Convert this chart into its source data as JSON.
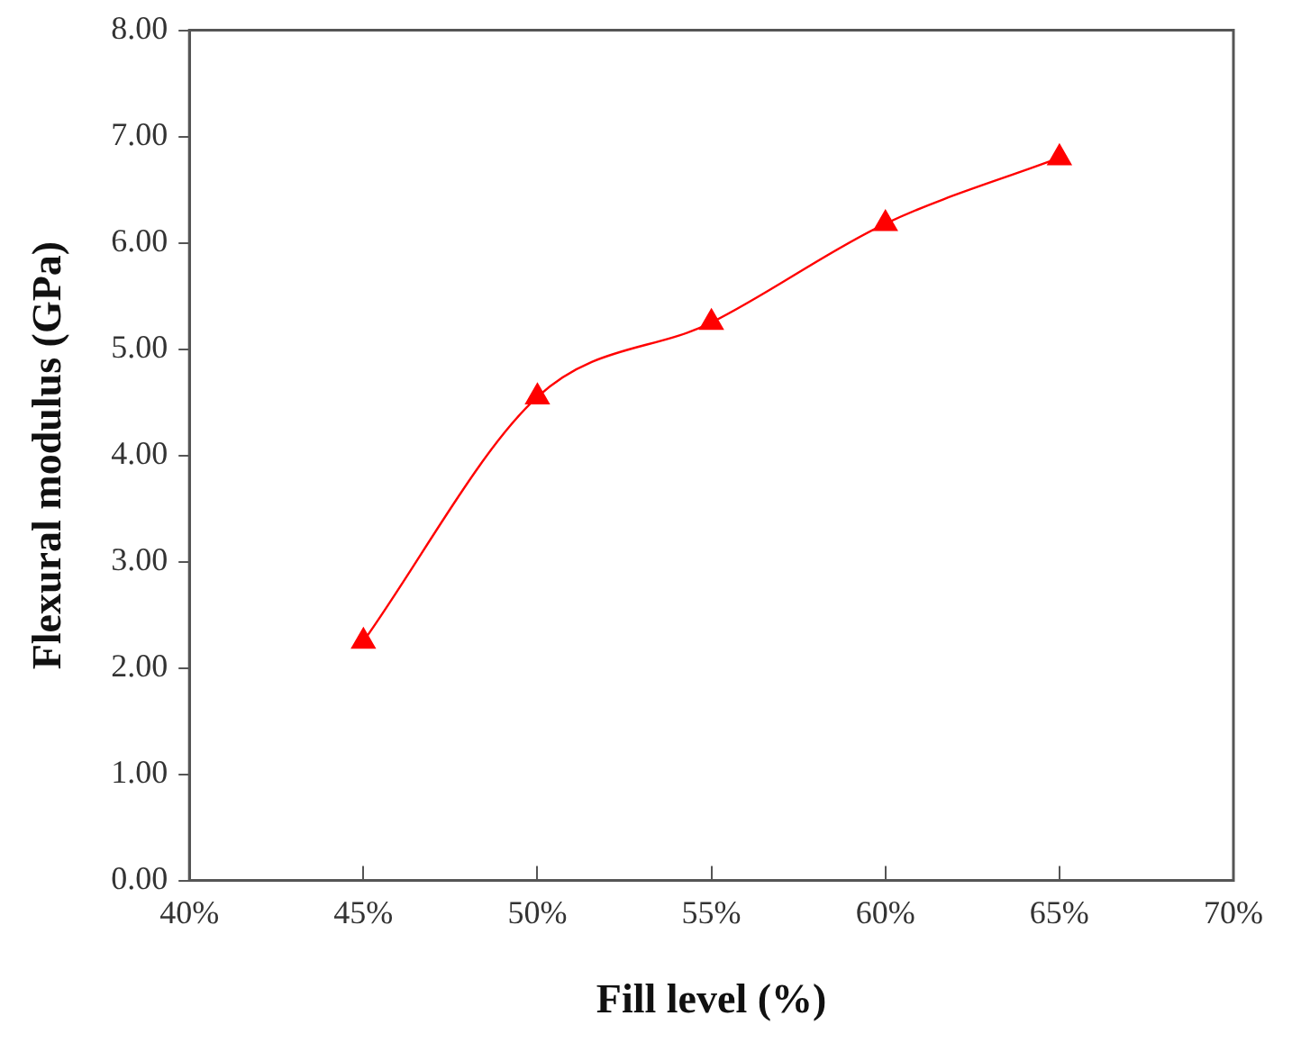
{
  "chart_data": {
    "type": "line",
    "xlabel": "Fill level (%)",
    "ylabel": "Flexural modulus (GPa)",
    "x": [
      45,
      50,
      55,
      60,
      65
    ],
    "series": [
      {
        "color": "#ff0000",
        "values": [
          2.25,
          4.55,
          5.25,
          6.18,
          6.8
        ]
      }
    ],
    "xlim": [
      40,
      70
    ],
    "xticks": [
      {
        "value": 40,
        "label": "40%"
      },
      {
        "value": 45,
        "label": "45%"
      },
      {
        "value": 50,
        "label": "50%"
      },
      {
        "value": 55,
        "label": "55%"
      },
      {
        "value": 60,
        "label": "60%"
      },
      {
        "value": 65,
        "label": "65%"
      },
      {
        "value": 70,
        "label": "70%"
      }
    ],
    "ylim": [
      0,
      8
    ],
    "yticks": [
      {
        "value": 0,
        "label": "0.00"
      },
      {
        "value": 1,
        "label": "1.00"
      },
      {
        "value": 2,
        "label": "2.00"
      },
      {
        "value": 3,
        "label": "3.00"
      },
      {
        "value": 4,
        "label": "4.00"
      },
      {
        "value": 5,
        "label": "5.00"
      },
      {
        "value": 6,
        "label": "6.00"
      },
      {
        "value": 7,
        "label": "7.00"
      },
      {
        "value": 8,
        "label": "8.00"
      }
    ],
    "grid": false,
    "legend": false,
    "marker": "triangle",
    "line_style": "solid"
  }
}
